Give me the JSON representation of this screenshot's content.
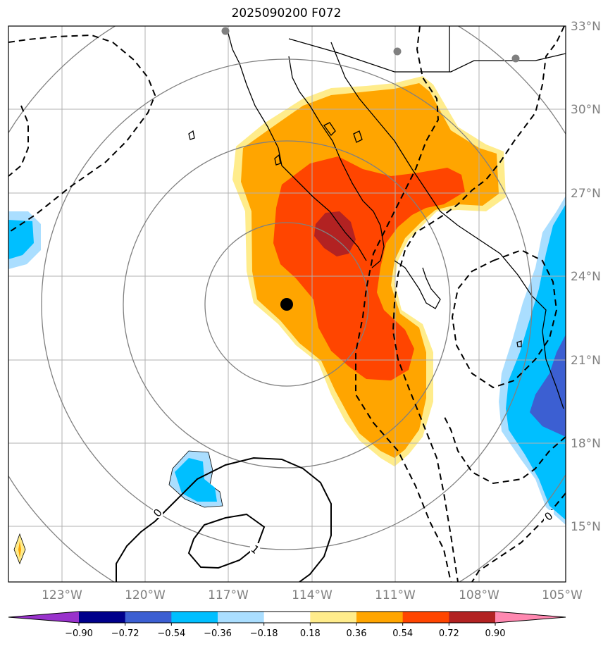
{
  "title": "2025090200 F072",
  "lat_labels": [
    "33°N",
    "30°N",
    "27°N",
    "24°N",
    "21°N",
    "18°N",
    "15°N"
  ],
  "lon_labels": [
    "123°W",
    "120°W",
    "117°W",
    "114°W",
    "111°W",
    "108°W",
    "105°W"
  ],
  "contour_labels": [
    "0",
    "1",
    "0"
  ],
  "colorbar": {
    "colors": [
      "#9932cc",
      "#00008b",
      "#3c5fd2",
      "#00bfff",
      "#aadeff",
      "#ffffff",
      "#ffec8b",
      "#ffa500",
      "#ff4500",
      "#b22222",
      "#ff88b0"
    ],
    "tick_labels": [
      "−0.90",
      "−0.72",
      "−0.54",
      "−0.36",
      "−0.18",
      "0.18",
      "0.36",
      "0.54",
      "0.72",
      "0.90"
    ]
  },
  "colors": {
    "light_yellow": "#ffec8b",
    "orange": "#ffa500",
    "red_orange": "#ff4500",
    "dark_red": "#b22222",
    "light_blue": "#aadeff",
    "deep_sky_blue": "#00bfff",
    "royal_blue": "#3c5fd2",
    "grid": "#b0b0b0",
    "range_rings": "#808080",
    "storm_center": "#000000",
    "stations": "#808080"
  }
}
